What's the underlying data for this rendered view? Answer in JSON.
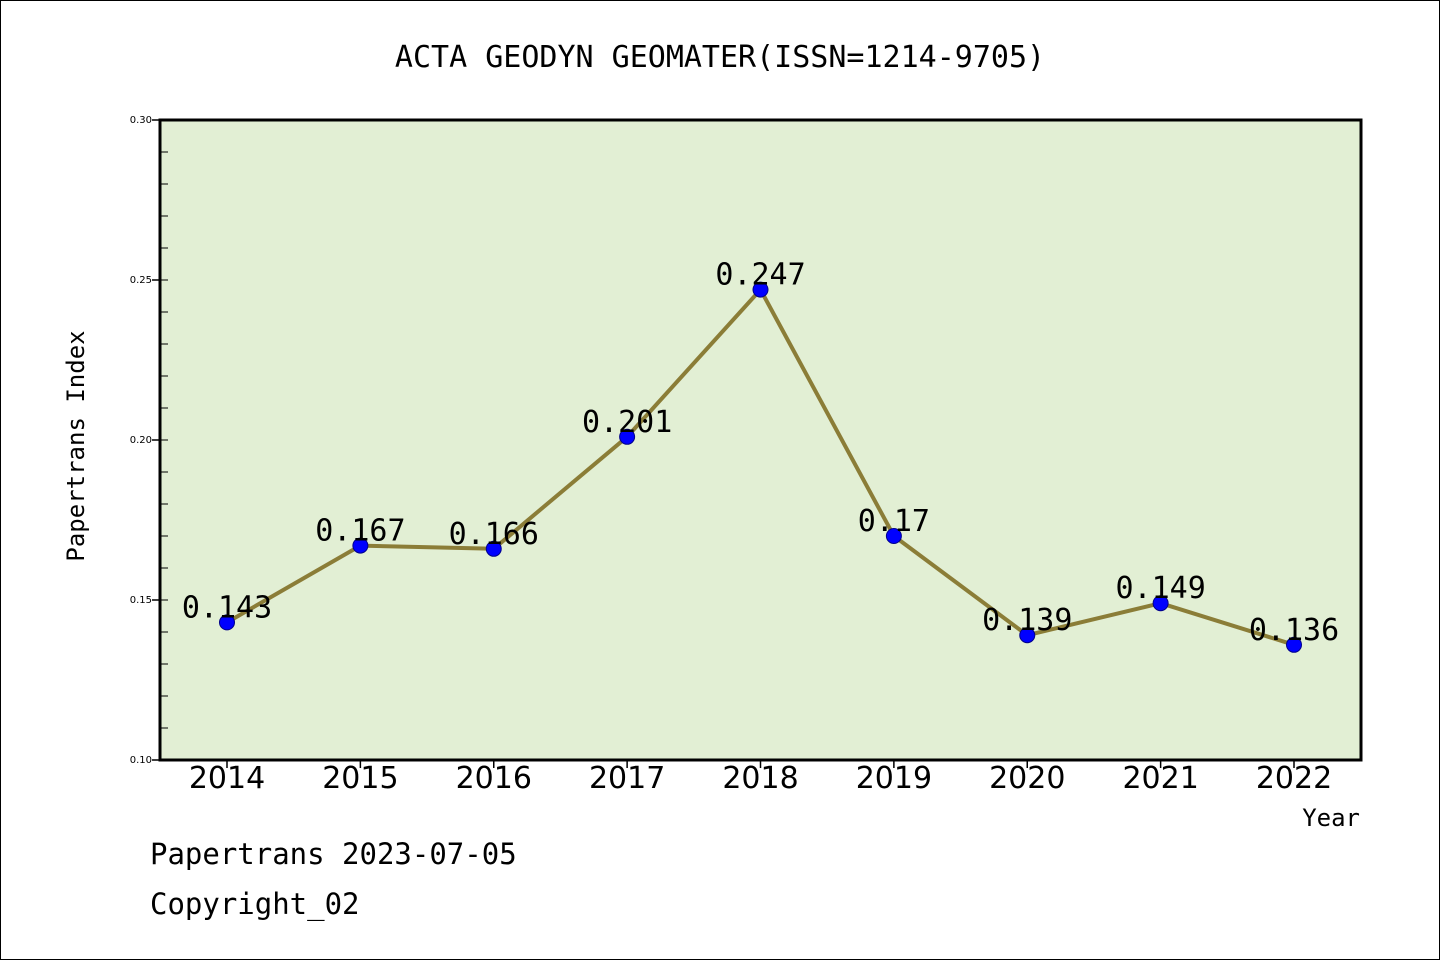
{
  "chart_data": {
    "type": "line",
    "title": "ACTA GEODYN GEOMATER(ISSN=1214-9705)",
    "xlabel": "Year",
    "ylabel": "Papertrans Index",
    "categories": [
      "2014",
      "2015",
      "2016",
      "2017",
      "2018",
      "2019",
      "2020",
      "2021",
      "2022"
    ],
    "values": [
      0.143,
      0.167,
      0.166,
      0.201,
      0.247,
      0.17,
      0.139,
      0.149,
      0.136
    ],
    "data_labels": [
      "0.143",
      "0.167",
      "0.166",
      "0.201",
      "0.247",
      "0.17",
      "0.139",
      "0.149",
      "0.136"
    ],
    "ylim": [
      0.1,
      0.3
    ],
    "yticks": [
      0.1,
      0.15,
      0.2,
      0.25,
      0.3
    ],
    "ytick_labels": [
      "0.10",
      "0.15",
      "0.20",
      "0.25",
      "0.30"
    ],
    "y_minor_step": 0.01,
    "grid": false,
    "legend": "none",
    "colors": {
      "plot_background": "#e2efd4",
      "line": "#8b7d37",
      "marker": "#0000ff",
      "marker_edge": "#00008b",
      "axes": "#000000"
    }
  },
  "footer": {
    "line1": "Papertrans 2023-07-05",
    "line2": "Copyright_02"
  }
}
